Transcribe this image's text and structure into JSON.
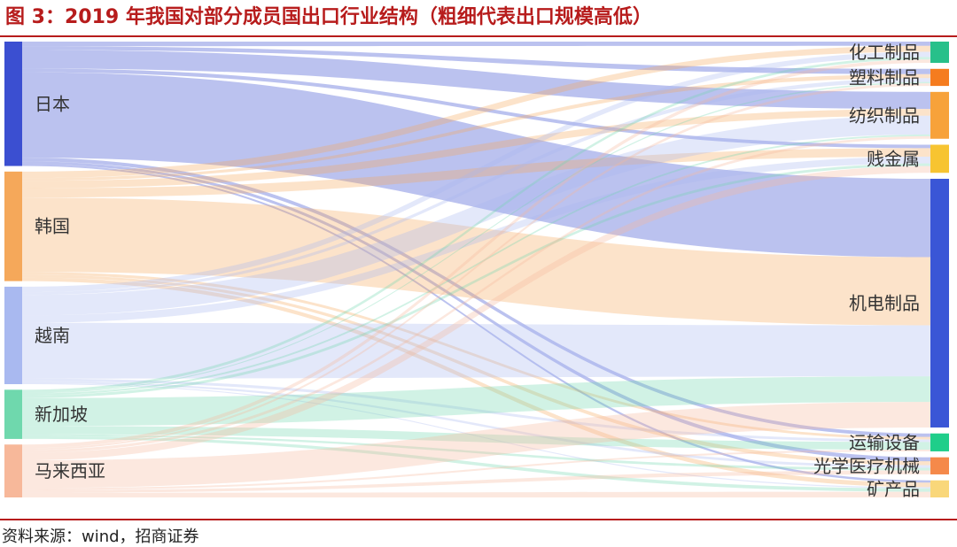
{
  "title": "图 3：2019 年我国对部分成员国出口行业结构（粗细代表出口规模高低）",
  "source": "资料来源：wind，招商证券",
  "sources": [
    {
      "id": "japan",
      "label": "日本",
      "color": "#3b4fd1"
    },
    {
      "id": "korea",
      "label": "韩国",
      "color": "#f5a85a"
    },
    {
      "id": "vietnam",
      "label": "越南",
      "color": "#a9b9f0"
    },
    {
      "id": "singapore",
      "label": "新加坡",
      "color": "#6fd8ad"
    },
    {
      "id": "malaysia",
      "label": "马来西亚",
      "color": "#f7b89a"
    }
  ],
  "targets": [
    {
      "id": "chemical",
      "label": "化工制品",
      "color": "#27c08a"
    },
    {
      "id": "plastic",
      "label": "塑料制品",
      "color": "#f57c1f"
    },
    {
      "id": "textile",
      "label": "纺织制品",
      "color": "#f7a23a"
    },
    {
      "id": "basemetal",
      "label": "贱金属",
      "color": "#f7c431"
    },
    {
      "id": "machinery",
      "label": "机电制品",
      "color": "#3a56d6"
    },
    {
      "id": "transport",
      "label": "运输设备",
      "color": "#1fce8a"
    },
    {
      "id": "optical",
      "label": "光学医疗机械",
      "color": "#f5894a"
    },
    {
      "id": "mineral",
      "label": "矿产品",
      "color": "#f9d77a"
    }
  ],
  "links": [
    [
      "japan",
      "chemical",
      5
    ],
    [
      "japan",
      "plastic",
      4
    ],
    [
      "japan",
      "textile",
      20
    ],
    [
      "japan",
      "basemetal",
      4
    ],
    [
      "japan",
      "machinery",
      92
    ],
    [
      "japan",
      "transport",
      4
    ],
    [
      "japan",
      "optical",
      3
    ],
    [
      "japan",
      "mineral",
      2
    ],
    [
      "korea",
      "chemical",
      7
    ],
    [
      "korea",
      "plastic",
      3
    ],
    [
      "korea",
      "textile",
      8
    ],
    [
      "korea",
      "basemetal",
      10
    ],
    [
      "korea",
      "machinery",
      80
    ],
    [
      "korea",
      "transport",
      3
    ],
    [
      "korea",
      "optical",
      3
    ],
    [
      "korea",
      "mineral",
      4
    ],
    [
      "vietnam",
      "chemical",
      6
    ],
    [
      "vietnam",
      "plastic",
      3
    ],
    [
      "vietnam",
      "textile",
      22
    ],
    [
      "vietnam",
      "basemetal",
      8
    ],
    [
      "vietnam",
      "machinery",
      60
    ],
    [
      "vietnam",
      "transport",
      3
    ],
    [
      "vietnam",
      "optical",
      2
    ],
    [
      "vietnam",
      "mineral",
      1
    ],
    [
      "singapore",
      "chemical",
      3
    ],
    [
      "singapore",
      "plastic",
      1
    ],
    [
      "singapore",
      "textile",
      2
    ],
    [
      "singapore",
      "basemetal",
      3
    ],
    [
      "singapore",
      "machinery",
      30
    ],
    [
      "singapore",
      "transport",
      9
    ],
    [
      "singapore",
      "optical",
      2
    ],
    [
      "singapore",
      "mineral",
      3
    ],
    [
      "malaysia",
      "chemical",
      4
    ],
    [
      "malaysia",
      "plastic",
      2
    ],
    [
      "malaysia",
      "textile",
      3
    ],
    [
      "malaysia",
      "basemetal",
      8
    ],
    [
      "malaysia",
      "machinery",
      30
    ],
    [
      "malaysia",
      "transport",
      2
    ],
    [
      "malaysia",
      "optical",
      3
    ],
    [
      "malaysia",
      "mineral",
      5
    ]
  ]
}
